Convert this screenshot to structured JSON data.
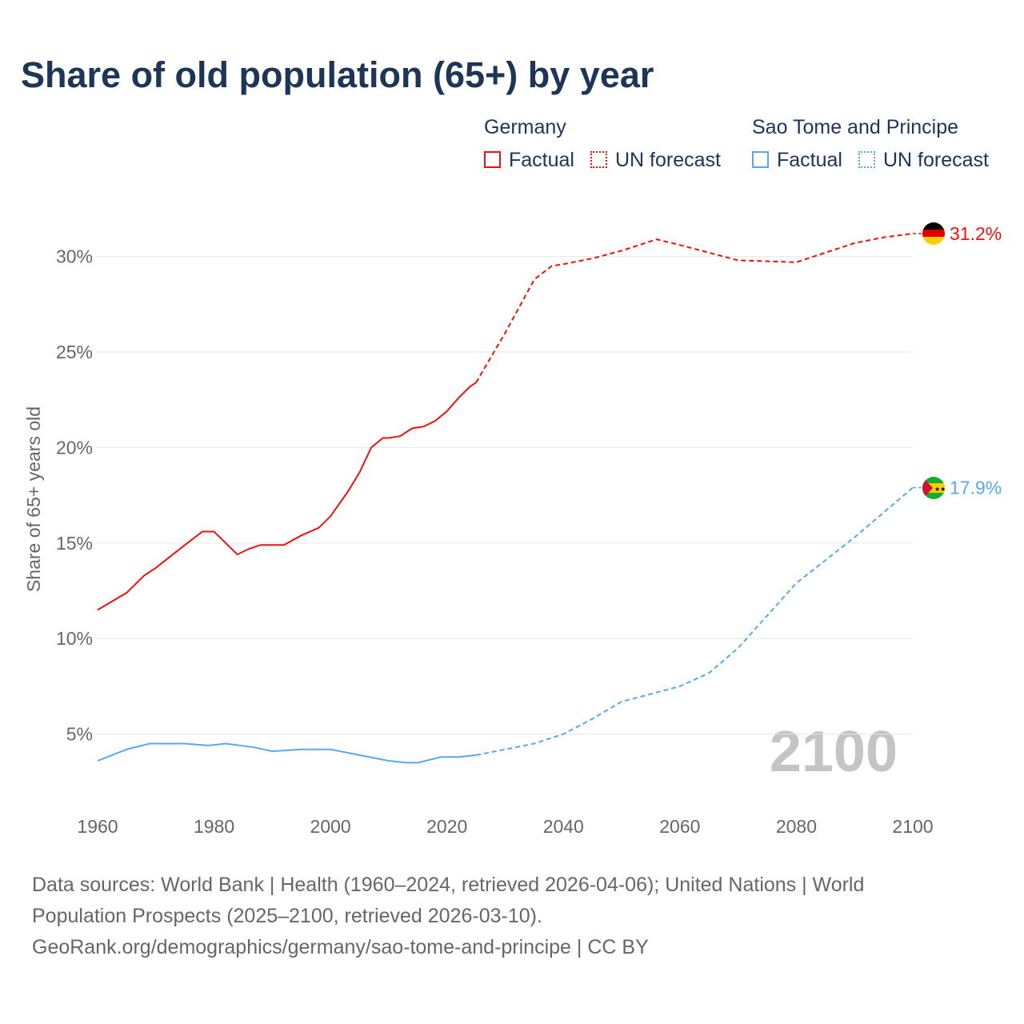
{
  "title": "Share of old population (65+) by year",
  "legend": {
    "groups": [
      {
        "name": "Germany",
        "factual": "Factual",
        "forecast": "UN forecast",
        "color": "#ee1111"
      },
      {
        "name": "Sao Tome and Principe",
        "factual": "Factual",
        "forecast": "UN forecast",
        "color": "#5aa7ea"
      }
    ]
  },
  "year_watermark": "2100",
  "footer": {
    "line1": "Data sources: World Bank | Health (1960–2024, retrieved 2026-04-06); United Nations | World",
    "line2": "Population Prospects (2025–2100, retrieved 2026-03-10).",
    "line3": "GeoRank.org/demographics/germany/sao-tome-and-principe | CC BY"
  },
  "chart_data": {
    "type": "line",
    "title": "Share of old population (65+) by year",
    "xlabel": "",
    "ylabel": "Share of 65+ years old",
    "xlim": [
      1960,
      2100
    ],
    "ylim": [
      0,
      32
    ],
    "x_ticks": [
      "1960",
      "1980",
      "2000",
      "2020",
      "2040",
      "2060",
      "2080",
      "2100"
    ],
    "y_ticks": [
      "5%",
      "10%",
      "15%",
      "20%",
      "25%",
      "30%"
    ],
    "forecast_start": 2025,
    "series": [
      {
        "name": "Germany",
        "color": "#ee1111",
        "end_label": "31.2%",
        "x": [
          1960,
          1965,
          1968,
          1970,
          1975,
          1978,
          1980,
          1982,
          1984,
          1986,
          1988,
          1992,
          1995,
          1998,
          2000,
          2003,
          2005,
          2007,
          2009,
          2010,
          2012,
          2014,
          2016,
          2018,
          2020,
          2022,
          2024,
          2025,
          2030,
          2035,
          2038,
          2040,
          2045,
          2050,
          2056,
          2060,
          2065,
          2070,
          2080,
          2085,
          2090,
          2095,
          2100
        ],
        "values": [
          11.5,
          12.4,
          13.3,
          13.7,
          14.9,
          15.6,
          15.6,
          15.0,
          14.4,
          14.7,
          14.9,
          14.9,
          15.4,
          15.8,
          16.4,
          17.7,
          18.7,
          20.0,
          20.5,
          20.5,
          20.6,
          21.0,
          21.1,
          21.4,
          21.9,
          22.6,
          23.2,
          23.4,
          26.0,
          28.8,
          29.5,
          29.6,
          29.9,
          30.3,
          30.9,
          30.6,
          30.2,
          29.8,
          29.7,
          30.2,
          30.7,
          31.0,
          31.2
        ]
      },
      {
        "name": "Sao Tome and Principe",
        "color": "#5aa7ea",
        "end_label": "17.9%",
        "x": [
          1960,
          1965,
          1969,
          1975,
          1979,
          1982,
          1987,
          1990,
          1995,
          2000,
          2005,
          2010,
          2013,
          2015,
          2019,
          2022,
          2025,
          2030,
          2035,
          2040,
          2045,
          2050,
          2055,
          2060,
          2065,
          2070,
          2075,
          2080,
          2085,
          2090,
          2095,
          2100
        ],
        "values": [
          3.6,
          4.2,
          4.5,
          4.5,
          4.4,
          4.5,
          4.3,
          4.1,
          4.2,
          4.2,
          3.9,
          3.6,
          3.5,
          3.5,
          3.8,
          3.8,
          3.9,
          4.2,
          4.5,
          5.0,
          5.8,
          6.7,
          7.1,
          7.5,
          8.2,
          9.5,
          11.2,
          12.9,
          14.1,
          15.3,
          16.6,
          17.9
        ]
      }
    ]
  }
}
